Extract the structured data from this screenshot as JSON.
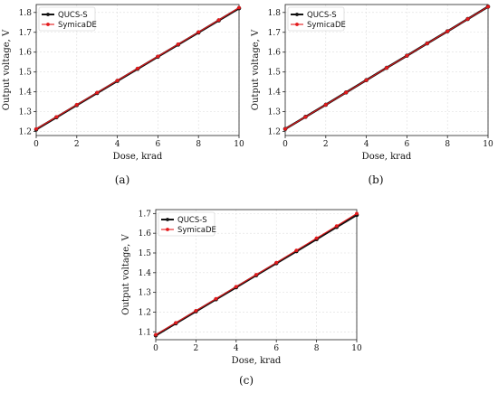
{
  "figure": {
    "captions": [
      "(a)",
      "(b)",
      "(c)"
    ]
  },
  "colors": {
    "qucs": "#111111",
    "symica": "#e41a1c",
    "grid": "#dddddd"
  },
  "chart_data": [
    {
      "type": "line",
      "xlabel": "Dose, krad",
      "ylabel": "Output voltage, V",
      "xlim": [
        0,
        10
      ],
      "ylim": [
        1.18,
        1.84
      ],
      "xticks": [
        0,
        2,
        4,
        6,
        8,
        10
      ],
      "yticks": [
        1.2,
        1.3,
        1.4,
        1.5,
        1.6,
        1.7,
        1.8
      ],
      "grid": true,
      "legend": "top-left",
      "x": [
        0,
        1,
        2,
        3,
        4,
        5,
        6,
        7,
        8,
        9,
        10
      ],
      "series": [
        {
          "name": "QUCS-S",
          "values": [
            1.211,
            1.272,
            1.333,
            1.394,
            1.455,
            1.516,
            1.577,
            1.638,
            1.699,
            1.76,
            1.821
          ]
        },
        {
          "name": "SymicaDE",
          "values": [
            1.213,
            1.274,
            1.335,
            1.396,
            1.457,
            1.518,
            1.579,
            1.64,
            1.701,
            1.762,
            1.824
          ]
        }
      ]
    },
    {
      "type": "line",
      "xlabel": "Dose, krad",
      "ylabel": "Output voltage, V",
      "xlim": [
        0,
        10
      ],
      "ylim": [
        1.18,
        1.84
      ],
      "xticks": [
        0,
        2,
        4,
        6,
        8,
        10
      ],
      "yticks": [
        1.2,
        1.3,
        1.4,
        1.5,
        1.6,
        1.7,
        1.8
      ],
      "grid": true,
      "legend": "top-left",
      "x": [
        0,
        1,
        2,
        3,
        4,
        5,
        6,
        7,
        8,
        9,
        10
      ],
      "series": [
        {
          "name": "QUCS-S",
          "values": [
            1.213,
            1.274,
            1.335,
            1.397,
            1.459,
            1.521,
            1.582,
            1.644,
            1.705,
            1.767,
            1.829
          ]
        },
        {
          "name": "SymicaDE",
          "values": [
            1.213,
            1.274,
            1.335,
            1.397,
            1.459,
            1.521,
            1.582,
            1.644,
            1.705,
            1.767,
            1.829
          ]
        }
      ]
    },
    {
      "type": "line",
      "xlabel": "Dose, krad",
      "ylabel": "Output voltage, V",
      "xlim": [
        0,
        10
      ],
      "ylim": [
        1.06,
        1.72
      ],
      "xticks": [
        0,
        2,
        4,
        6,
        8,
        10
      ],
      "yticks": [
        1.1,
        1.2,
        1.3,
        1.4,
        1.5,
        1.6,
        1.7
      ],
      "grid": true,
      "legend": "top-left",
      "x": [
        0,
        1,
        2,
        3,
        4,
        5,
        6,
        7,
        8,
        9,
        10
      ],
      "series": [
        {
          "name": "QUCS-S",
          "values": [
            1.082,
            1.143,
            1.204,
            1.265,
            1.326,
            1.387,
            1.448,
            1.509,
            1.57,
            1.632,
            1.693
          ]
        },
        {
          "name": "SymicaDE",
          "values": [
            1.085,
            1.146,
            1.207,
            1.268,
            1.329,
            1.39,
            1.451,
            1.513,
            1.575,
            1.637,
            1.7
          ]
        }
      ]
    }
  ]
}
